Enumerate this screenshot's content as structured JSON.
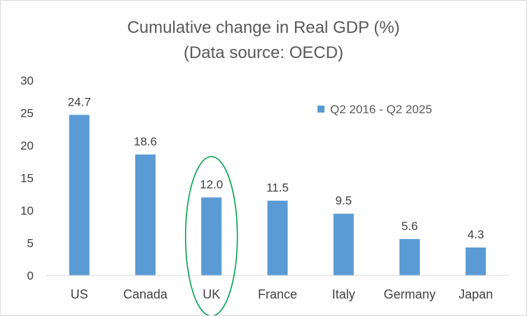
{
  "chart_data": {
    "type": "bar",
    "title": "Cumulative change in Real GDP (%)",
    "subtitle": "(Data source:  OECD)",
    "categories": [
      "US",
      "Canada",
      "UK",
      "France",
      "Italy",
      "Germany",
      "Japan"
    ],
    "series": [
      {
        "name": "Q2 2016 - Q2 2025",
        "values": [
          24.7,
          18.6,
          12.0,
          11.5,
          9.5,
          5.6,
          4.3
        ],
        "labels": [
          "24.7",
          "18.6",
          "12.0",
          "11.5",
          "9.5",
          "5.6",
          "4.3"
        ]
      }
    ],
    "y_ticks": [
      "0",
      "5",
      "10",
      "15",
      "20",
      "25",
      "30"
    ],
    "ylim": [
      0,
      30
    ],
    "xlabel": "",
    "ylabel": "",
    "grid": false,
    "legend_position": "top-right",
    "highlight": {
      "category": "UK",
      "shape": "ellipse",
      "color": "#00a14b"
    },
    "colors": {
      "bar": "#5b9bd5",
      "axis": "#d9d9d9",
      "highlight": "#00a14b"
    }
  }
}
